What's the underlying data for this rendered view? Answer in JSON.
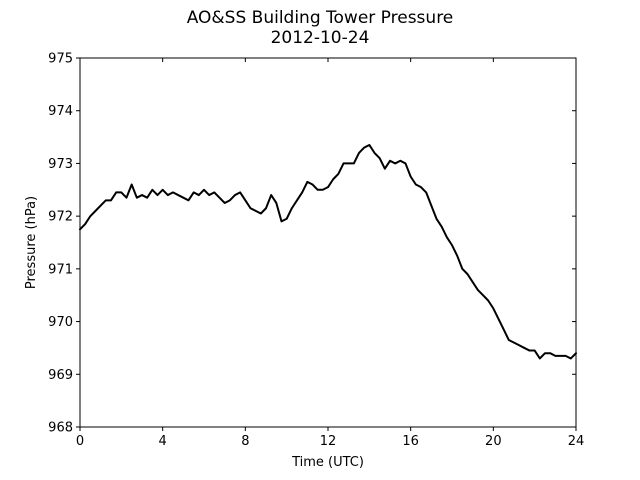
{
  "chart_data": {
    "type": "line",
    "title": "AO&SS Building Tower Pressure",
    "subtitle": "2012-10-24",
    "xlabel": "Time (UTC)",
    "ylabel": "Pressure (hPa)",
    "xlim": [
      0,
      24
    ],
    "ylim": [
      968,
      975
    ],
    "xticks": [
      0,
      4,
      8,
      12,
      16,
      20,
      24
    ],
    "yticks": [
      968,
      969,
      970,
      971,
      972,
      973,
      974,
      975
    ],
    "grid": false,
    "line_color": "#000000",
    "series": [
      {
        "x": [
          0,
          0.25,
          0.5,
          0.75,
          1.0,
          1.25,
          1.5,
          1.75,
          2.0,
          2.25,
          2.5,
          2.75,
          3.0,
          3.25,
          3.5,
          3.75,
          4.0,
          4.25,
          4.5,
          4.75,
          5.0,
          5.25,
          5.5,
          5.75,
          6.0,
          6.25,
          6.5,
          6.75,
          7.0,
          7.25,
          7.5,
          7.75,
          8.0,
          8.25,
          8.5,
          8.75,
          9.0,
          9.25,
          9.5,
          9.75,
          10.0,
          10.25,
          10.5,
          10.75,
          11.0,
          11.25,
          11.5,
          11.75,
          12.0,
          12.25,
          12.5,
          12.75,
          13.0,
          13.25,
          13.5,
          13.75,
          14.0,
          14.25,
          14.5,
          14.75,
          15.0,
          15.25,
          15.5,
          15.75,
          16.0,
          16.25,
          16.5,
          16.75,
          17.0,
          17.25,
          17.5,
          17.75,
          18.0,
          18.25,
          18.5,
          18.75,
          19.0,
          19.25,
          19.5,
          19.75,
          20.0,
          20.25,
          20.5,
          20.75,
          21.0,
          21.25,
          21.5,
          21.75,
          22.0,
          22.25,
          22.5,
          22.75,
          23.0,
          23.25,
          23.5,
          23.75,
          24.0
        ],
        "values": [
          971.75,
          971.85,
          972.0,
          972.1,
          972.2,
          972.3,
          972.3,
          972.45,
          972.45,
          972.35,
          972.6,
          972.35,
          972.4,
          972.35,
          972.5,
          972.4,
          972.5,
          972.4,
          972.45,
          972.4,
          972.35,
          972.3,
          972.45,
          972.4,
          972.5,
          972.4,
          972.45,
          972.35,
          972.25,
          972.3,
          972.4,
          972.45,
          972.3,
          972.15,
          972.1,
          972.05,
          972.15,
          972.4,
          972.25,
          971.9,
          971.95,
          972.15,
          972.3,
          972.45,
          972.65,
          972.6,
          972.5,
          972.5,
          972.55,
          972.7,
          972.8,
          973.0,
          973.0,
          973.0,
          973.2,
          973.3,
          973.35,
          973.2,
          973.1,
          972.9,
          973.05,
          973.0,
          973.05,
          973.0,
          972.75,
          972.6,
          972.55,
          972.45,
          972.2,
          971.95,
          971.8,
          971.6,
          971.45,
          971.25,
          971.0,
          970.9,
          970.75,
          970.6,
          970.5,
          970.4,
          970.25,
          970.05,
          969.85,
          969.65,
          969.6,
          969.55,
          969.5,
          969.45,
          969.45,
          969.3,
          969.4,
          969.4,
          969.35,
          969.35,
          969.35,
          969.3,
          969.4
        ]
      }
    ]
  }
}
